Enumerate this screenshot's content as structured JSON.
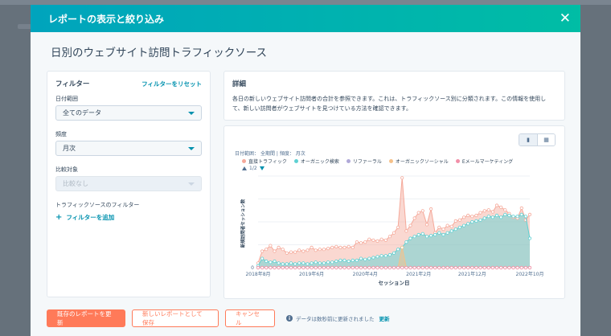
{
  "modal": {
    "title": "レポートの表示と絞り込み",
    "page_title": "日別のウェブサイト訪問トラフィックソース"
  },
  "filters": {
    "title": "フィルター",
    "reset_label": "フィルターをリセット",
    "date_range_label": "日付範囲",
    "date_range_value": "全てのデータ",
    "frequency_label": "頻度",
    "frequency_value": "月次",
    "compare_label": "比較対象",
    "compare_value": "比較なし",
    "traffic_filter_label": "トラフィックソースのフィルター",
    "add_filter_label": "フィルターを追加"
  },
  "details": {
    "title": "詳細",
    "text": "各日の新しいウェブサイト訪問者の合計を参照できます。これは、トラフィックソース別に分類されます。この情報を使用して、新しい訪問者がウェブサイトを見つけている方法を確認できます。"
  },
  "chart_meta": {
    "date_range_text": "日付範囲：",
    "date_range_value": "全期間",
    "frequency_text": "頻度：",
    "frequency_value": "月次",
    "pager": "1/2"
  },
  "chart_data": {
    "type": "area",
    "xlabel": "セッション日",
    "ylabel": "新規訪問者セッション数",
    "x_tick_labels": [
      "2018年8月",
      "2019年6月",
      "2020年4月",
      "2021年2月",
      "2021年12月",
      "2022年10月"
    ],
    "y_tick_labels": [
      "0"
    ],
    "ylim": [
      0,
      100
    ],
    "grid": true,
    "legend_position": "top",
    "series": [
      {
        "name": "直接トラフィック",
        "color": "#f5a99a",
        "values": [
          5,
          18,
          20,
          24,
          18,
          22,
          20,
          16,
          17,
          17,
          19,
          18,
          19,
          22,
          19,
          20,
          20,
          21,
          22,
          23,
          22,
          22,
          23,
          22,
          28,
          27,
          28,
          31,
          30,
          29,
          31,
          30,
          34,
          38,
          44,
          98,
          40,
          46,
          54,
          60,
          62,
          47,
          64,
          38,
          44,
          42,
          46,
          45,
          51,
          52,
          55,
          57,
          56,
          57,
          60,
          62,
          63,
          61,
          68,
          66,
          63,
          59,
          55,
          54,
          65,
          52,
          58
        ]
      },
      {
        "name": "オーガニック検索",
        "color": "#5ed1d3",
        "values": [
          2,
          10,
          7,
          6,
          7,
          5,
          4,
          4,
          5,
          4,
          5,
          5,
          4,
          5,
          6,
          5,
          5,
          6,
          6,
          7,
          8,
          8,
          7,
          8,
          8,
          10,
          9,
          10,
          11,
          12,
          13,
          13,
          14,
          16,
          20,
          22,
          28,
          32,
          34,
          36,
          37,
          34,
          35,
          36,
          38,
          36,
          38,
          40,
          42,
          44,
          46,
          48,
          50,
          51,
          52,
          54,
          56,
          55,
          57,
          55,
          58,
          57,
          56,
          56,
          58,
          56,
          32
        ]
      },
      {
        "name": "リファーラル",
        "color": "#b0a9d8",
        "values": [
          0,
          0,
          0,
          0,
          0,
          0,
          0,
          0,
          0,
          0,
          0,
          0,
          0,
          0,
          0,
          0,
          0,
          0,
          0,
          0,
          0,
          0,
          0,
          0,
          0,
          0,
          0,
          0,
          0,
          0,
          0,
          0,
          0,
          0,
          0,
          0,
          0,
          0,
          0,
          0,
          0,
          0,
          0,
          0,
          0,
          0,
          0,
          0,
          0,
          0,
          0,
          0,
          0,
          0,
          0,
          0,
          0,
          0,
          0,
          0,
          0,
          0,
          0,
          0,
          0,
          0,
          0
        ]
      },
      {
        "name": "オーガニックソーシャル",
        "color": "#f5c18a",
        "values": [
          0,
          0,
          0,
          0,
          0,
          0,
          0,
          0,
          0,
          0,
          0,
          0,
          0,
          0,
          0,
          0,
          0,
          0,
          0,
          0,
          0,
          0,
          0,
          0,
          0,
          0,
          0,
          0,
          0,
          0,
          0,
          0,
          0,
          0,
          0,
          22,
          0,
          0,
          0,
          0,
          0,
          0,
          0,
          0,
          0,
          0,
          0,
          0,
          0,
          0,
          0,
          0,
          0,
          0,
          0,
          0,
          0,
          0,
          0,
          0,
          0,
          0,
          0,
          0,
          0,
          0,
          0
        ]
      },
      {
        "name": "Eメールマーケティング",
        "color": "#f28fa8",
        "values": [
          0,
          0,
          0,
          0,
          0,
          0,
          0,
          0,
          0,
          0,
          0,
          0,
          0,
          0,
          0,
          0,
          0,
          0,
          0,
          0,
          0,
          0,
          0,
          0,
          0,
          0,
          0,
          0,
          0,
          0,
          0,
          0,
          0,
          0,
          0,
          0,
          0,
          0,
          0,
          0,
          0,
          0,
          0,
          0,
          0,
          0,
          0,
          0,
          0,
          0,
          0,
          0,
          0,
          0,
          0,
          0,
          0,
          0,
          0,
          0,
          0,
          0,
          0,
          0,
          0,
          0,
          0
        ]
      }
    ]
  },
  "footer": {
    "update_label": "既存のレポートを更新",
    "save_new_label": "新しいレポートとして保存",
    "cancel_label": "キャンセル",
    "note": "データは数秒前に更新されました",
    "refresh_label": "更新"
  }
}
